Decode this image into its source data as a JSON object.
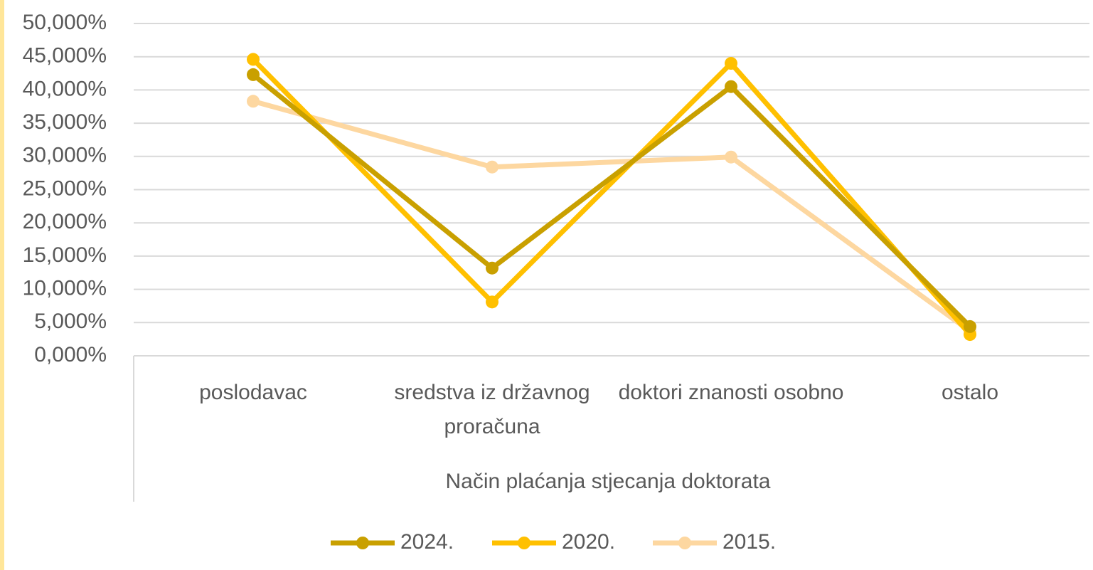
{
  "chart_data": {
    "type": "line",
    "x_label": "Način plaćanja stjecanja doktorata",
    "categories": [
      "poslodavac",
      "sredstva iz državnog proračuna",
      "doktori znanosti osobno",
      "ostalo"
    ],
    "series": [
      {
        "name": "2024.",
        "color": "#c9a000",
        "values": [
          42.3,
          13.2,
          40.5,
          4.4
        ]
      },
      {
        "name": "2020.",
        "color": "#ffc000",
        "values": [
          44.6,
          8.1,
          44.0,
          3.2
        ]
      },
      {
        "name": "2015.",
        "color": "#fdd7a0",
        "values": [
          38.3,
          28.4,
          29.9,
          3.7
        ]
      }
    ],
    "ylim": [
      0,
      50
    ],
    "yticks": [
      {
        "value": 0,
        "label": "0,000%"
      },
      {
        "value": 5,
        "label": "5,000%"
      },
      {
        "value": 10,
        "label": "10,000%"
      },
      {
        "value": 15,
        "label": "15,000%"
      },
      {
        "value": 20,
        "label": "20,000%"
      },
      {
        "value": 25,
        "label": "25,000%"
      },
      {
        "value": 30,
        "label": "30,000%"
      },
      {
        "value": 35,
        "label": "35,000%"
      },
      {
        "value": 40,
        "label": "40,000%"
      },
      {
        "value": 45,
        "label": "45,000%"
      },
      {
        "value": 50,
        "label": "50,000%"
      }
    ],
    "grid": true,
    "legend": "bottom"
  }
}
